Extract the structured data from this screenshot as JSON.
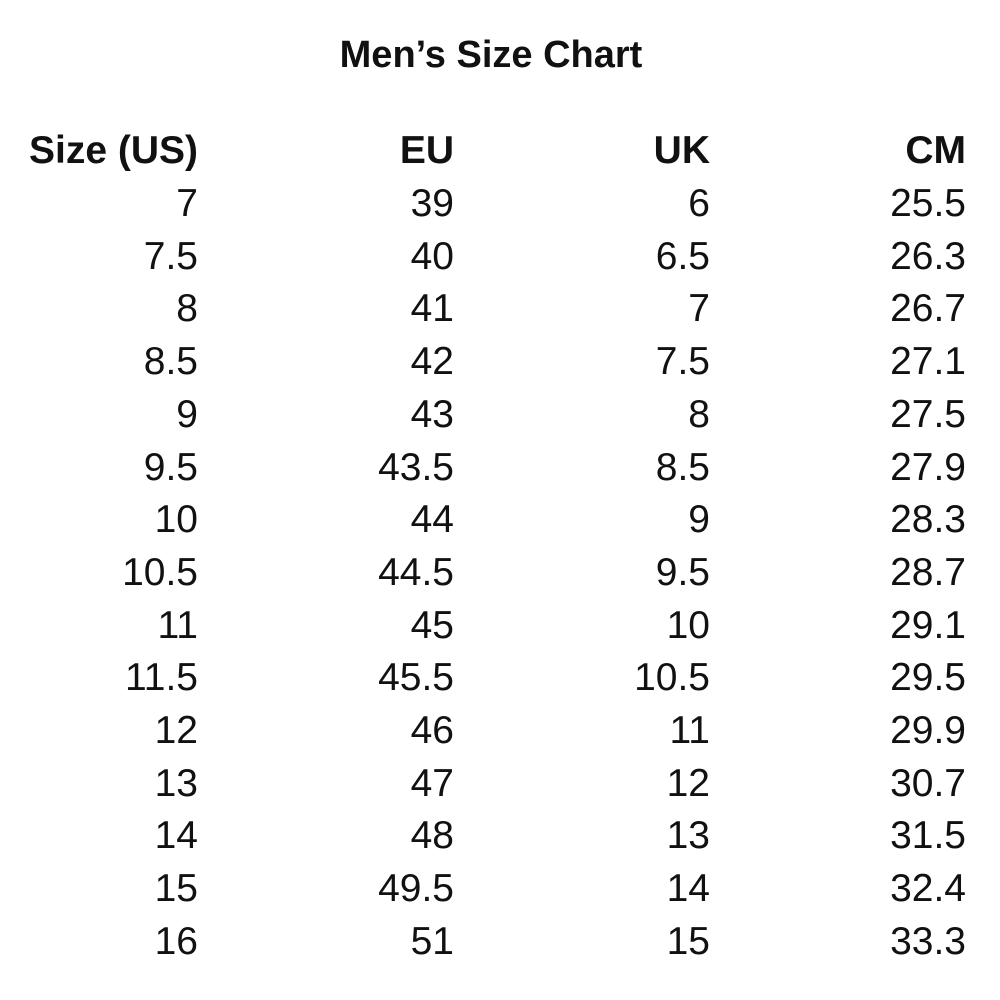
{
  "title": "Men’s Size Chart",
  "table": {
    "headers": [
      "Size (US)",
      "EU",
      "UK",
      "CM"
    ],
    "rows": [
      [
        "7",
        "39",
        "6",
        "25.5"
      ],
      [
        "7.5",
        "40",
        "6.5",
        "26.3"
      ],
      [
        "8",
        "41",
        "7",
        "26.7"
      ],
      [
        "8.5",
        "42",
        "7.5",
        "27.1"
      ],
      [
        "9",
        "43",
        "8",
        "27.5"
      ],
      [
        "9.5",
        "43.5",
        "8.5",
        "27.9"
      ],
      [
        "10",
        "44",
        "9",
        "28.3"
      ],
      [
        "10.5",
        "44.5",
        "9.5",
        "28.7"
      ],
      [
        "11",
        "45",
        "10",
        "29.1"
      ],
      [
        "11.5",
        "45.5",
        "10.5",
        "29.5"
      ],
      [
        "12",
        "46",
        "11",
        "29.9"
      ],
      [
        "13",
        "47",
        "12",
        "30.7"
      ],
      [
        "14",
        "48",
        "13",
        "31.5"
      ],
      [
        "15",
        "49.5",
        "14",
        "32.4"
      ],
      [
        "16",
        "51",
        "15",
        "33.3"
      ]
    ]
  }
}
